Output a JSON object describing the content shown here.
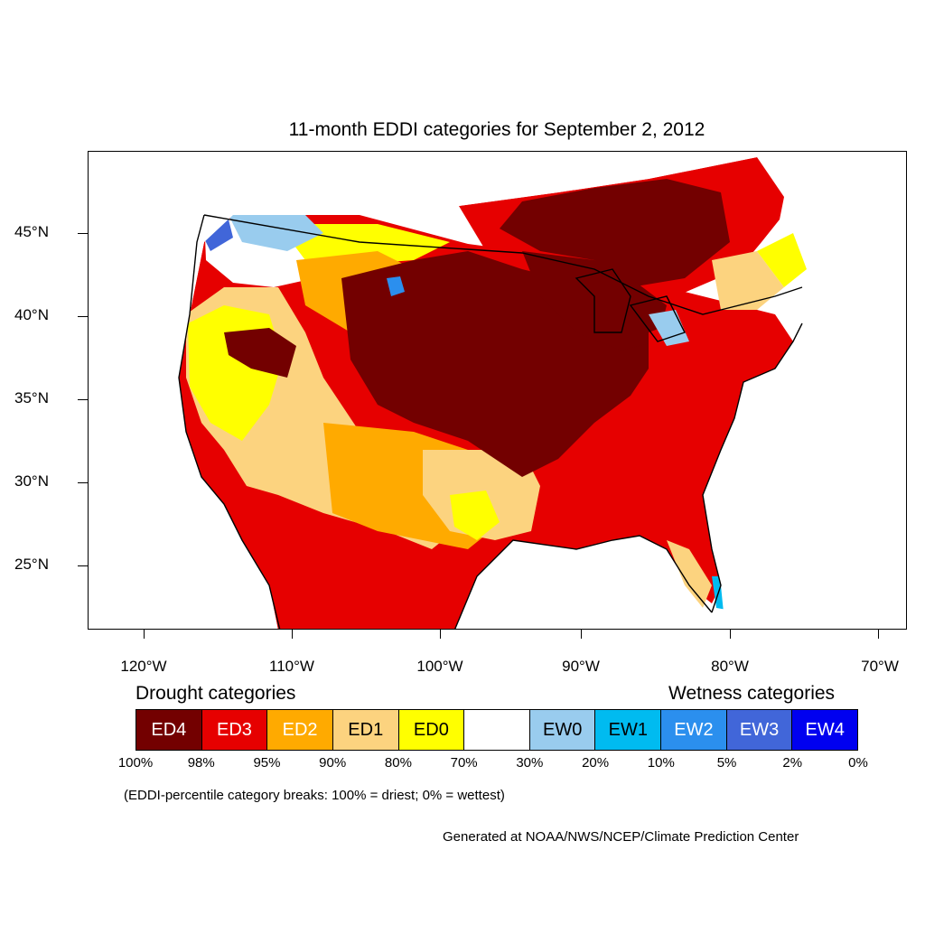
{
  "title": "11-month EDDI categories for September 2, 2012",
  "lat_labels": [
    "45°N",
    "40°N",
    "35°N",
    "30°N",
    "25°N"
  ],
  "lon_labels": [
    "120°W",
    "110°W",
    "100°W",
    "90°W",
    "80°W",
    "70°W"
  ],
  "legend": {
    "drought_heading": "Drought categories",
    "wetness_heading": "Wetness categories",
    "categories": [
      {
        "label": "ED4",
        "color": "#730000",
        "text_color": "#ffffff"
      },
      {
        "label": "ED3",
        "color": "#e60000",
        "text_color": "#ffffff"
      },
      {
        "label": "ED2",
        "color": "#ffaa00",
        "text_color": "#ffffff"
      },
      {
        "label": "ED1",
        "color": "#fcd37f",
        "text_color": "#000000"
      },
      {
        "label": "ED0",
        "color": "#ffff00",
        "text_color": "#000000"
      },
      {
        "label": "",
        "color": "#ffffff",
        "text_color": "#000000"
      },
      {
        "label": "EW0",
        "color": "#99ccee",
        "text_color": "#000000"
      },
      {
        "label": "EW1",
        "color": "#00bbf0",
        "text_color": "#000000"
      },
      {
        "label": "EW2",
        "color": "#2b8fee",
        "text_color": "#ffffff"
      },
      {
        "label": "EW3",
        "color": "#4166d9",
        "text_color": "#ffffff"
      },
      {
        "label": "EW4",
        "color": "#0000f0",
        "text_color": "#ffffff"
      }
    ],
    "percentiles": [
      "100%",
      "98%",
      "95%",
      "90%",
      "80%",
      "70%",
      "30%",
      "20%",
      "10%",
      "5%",
      "2%",
      "0%"
    ]
  },
  "note": "(EDDI-percentile category breaks: 100% = driest; 0% = wettest)",
  "credit": "Generated at NOAA/NWS/NCEP/Climate Prediction Center"
}
